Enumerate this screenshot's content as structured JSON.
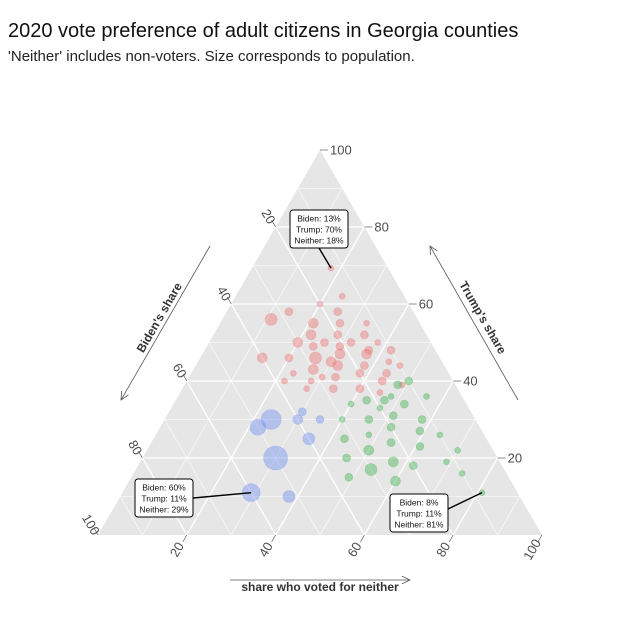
{
  "title": "2020 vote preference of adult citizens in Georgia counties",
  "subtitle": "'Neither' includes non-voters. Size corresponds to population.",
  "colors": {
    "panel": "#e6e6e6",
    "grid": "#ffffff",
    "biden": "#6d8ff0",
    "trump": "#ee6f6f",
    "neither": "#3cb04c"
  },
  "chart_data": {
    "type": "scatter",
    "subtype": "ternary",
    "axes": {
      "left": {
        "label": "Biden's share",
        "ticks": [
          20,
          40,
          60,
          80,
          100
        ]
      },
      "right": {
        "label": "Trump's share",
        "ticks": [
          20,
          40,
          60,
          80,
          100
        ]
      },
      "bottom": {
        "label": "share who voted for neither",
        "ticks": [
          20,
          40,
          60,
          80,
          100
        ]
      }
    },
    "grid": true,
    "legend": "none",
    "points": [
      {
        "b": 13,
        "t": 70,
        "n": 18,
        "c": "trump",
        "s": 3
      },
      {
        "b": 14,
        "t": 62,
        "n": 24,
        "c": "trump",
        "s": 3
      },
      {
        "b": 20,
        "t": 60,
        "n": 20,
        "c": "trump",
        "s": 3
      },
      {
        "b": 17,
        "t": 58,
        "n": 25,
        "c": "trump",
        "s": 4
      },
      {
        "b": 28,
        "t": 58,
        "n": 14,
        "c": "trump",
        "s": 4
      },
      {
        "b": 33,
        "t": 56,
        "n": 11,
        "c": "trump",
        "s": 6
      },
      {
        "b": 24,
        "t": 55,
        "n": 21,
        "c": "trump",
        "s": 5
      },
      {
        "b": 18,
        "t": 55,
        "n": 27,
        "c": "trump",
        "s": 4
      },
      {
        "b": 12,
        "t": 55,
        "n": 33,
        "c": "trump",
        "s": 3
      },
      {
        "b": 26,
        "t": 52,
        "n": 22,
        "c": "trump",
        "s": 5
      },
      {
        "b": 20,
        "t": 52,
        "n": 28,
        "c": "trump",
        "s": 4
      },
      {
        "b": 14,
        "t": 52,
        "n": 34,
        "c": "trump",
        "s": 4
      },
      {
        "b": 30,
        "t": 50,
        "n": 20,
        "c": "trump",
        "s": 5
      },
      {
        "b": 24,
        "t": 50,
        "n": 26,
        "c": "trump",
        "s": 4
      },
      {
        "b": 18,
        "t": 50,
        "n": 32,
        "c": "trump",
        "s": 4
      },
      {
        "b": 12,
        "t": 50,
        "n": 38,
        "c": "trump",
        "s": 3
      },
      {
        "b": 10,
        "t": 48,
        "n": 42,
        "c": "trump",
        "s": 4
      },
      {
        "b": 16,
        "t": 47,
        "n": 37,
        "c": "trump",
        "s": 5
      },
      {
        "b": 22,
        "t": 47,
        "n": 31,
        "c": "trump",
        "s": 5
      },
      {
        "b": 28,
        "t": 46,
        "n": 26,
        "c": "trump",
        "s": 6
      },
      {
        "b": 34,
        "t": 46,
        "n": 20,
        "c": "trump",
        "s": 4
      },
      {
        "b": 40,
        "t": 46,
        "n": 14,
        "c": "trump",
        "s": 5
      },
      {
        "b": 12,
        "t": 45,
        "n": 43,
        "c": "trump",
        "s": 3
      },
      {
        "b": 18,
        "t": 44,
        "n": 38,
        "c": "trump",
        "s": 4
      },
      {
        "b": 24,
        "t": 44,
        "n": 32,
        "c": "trump",
        "s": 5
      },
      {
        "b": 30,
        "t": 43,
        "n": 27,
        "c": "trump",
        "s": 5
      },
      {
        "b": 14,
        "t": 42,
        "n": 44,
        "c": "trump",
        "s": 4
      },
      {
        "b": 20,
        "t": 42,
        "n": 38,
        "c": "trump",
        "s": 4
      },
      {
        "b": 26,
        "t": 41,
        "n": 33,
        "c": "trump",
        "s": 4
      },
      {
        "b": 32,
        "t": 40,
        "n": 28,
        "c": "trump",
        "s": 3
      },
      {
        "b": 22,
        "t": 38,
        "n": 40,
        "c": "trump",
        "s": 4
      },
      {
        "b": 28,
        "t": 38,
        "n": 34,
        "c": "trump",
        "s": 4
      },
      {
        "b": 34,
        "t": 38,
        "n": 28,
        "c": "trump",
        "s": 3
      },
      {
        "b": 16,
        "t": 40,
        "n": 44,
        "c": "trump",
        "s": 4
      },
      {
        "b": 12,
        "t": 39,
        "n": 49,
        "c": "trump",
        "s": 3
      },
      {
        "b": 18,
        "t": 37,
        "n": 45,
        "c": "trump",
        "s": 3
      },
      {
        "b": 15,
        "t": 48,
        "n": 37,
        "c": "trump",
        "s": 4
      },
      {
        "b": 21,
        "t": 49,
        "n": 30,
        "c": "trump",
        "s": 4
      },
      {
        "b": 27,
        "t": 49,
        "n": 24,
        "c": "trump",
        "s": 4
      },
      {
        "b": 25,
        "t": 45,
        "n": 30,
        "c": "trump",
        "s": 5
      },
      {
        "b": 29,
        "t": 41,
        "n": 30,
        "c": "trump",
        "s": 3
      },
      {
        "b": 35,
        "t": 42,
        "n": 23,
        "c": "trump",
        "s": 3
      },
      {
        "b": 38,
        "t": 40,
        "n": 22,
        "c": "trump",
        "s": 3
      },
      {
        "b": 10,
        "t": 44,
        "n": 46,
        "c": "trump",
        "s": 3
      },
      {
        "b": 10,
        "t": 40,
        "n": 50,
        "c": "neither",
        "s": 4
      },
      {
        "b": 13,
        "t": 39,
        "n": 48,
        "c": "neither",
        "s": 4
      },
      {
        "b": 18,
        "t": 35,
        "n": 47,
        "c": "neither",
        "s": 4
      },
      {
        "b": 22,
        "t": 35,
        "n": 43,
        "c": "neither",
        "s": 4
      },
      {
        "b": 26,
        "t": 34,
        "n": 40,
        "c": "neither",
        "s": 3
      },
      {
        "b": 14,
        "t": 34,
        "n": 52,
        "c": "neither",
        "s": 4
      },
      {
        "b": 8,
        "t": 36,
        "n": 56,
        "c": "neither",
        "s": 3
      },
      {
        "b": 18,
        "t": 31,
        "n": 51,
        "c": "neither",
        "s": 4
      },
      {
        "b": 24,
        "t": 30,
        "n": 46,
        "c": "neither",
        "s": 4
      },
      {
        "b": 30,
        "t": 30,
        "n": 40,
        "c": "neither",
        "s": 3
      },
      {
        "b": 12,
        "t": 30,
        "n": 58,
        "c": "neither",
        "s": 4
      },
      {
        "b": 20,
        "t": 28,
        "n": 52,
        "c": "neither",
        "s": 4
      },
      {
        "b": 26,
        "t": 26,
        "n": 48,
        "c": "neither",
        "s": 3
      },
      {
        "b": 14,
        "t": 27,
        "n": 59,
        "c": "neither",
        "s": 4
      },
      {
        "b": 32,
        "t": 25,
        "n": 43,
        "c": "neither",
        "s": 4
      },
      {
        "b": 22,
        "t": 24,
        "n": 54,
        "c": "neither",
        "s": 4
      },
      {
        "b": 10,
        "t": 26,
        "n": 64,
        "c": "neither",
        "s": 3
      },
      {
        "b": 28,
        "t": 22,
        "n": 50,
        "c": "neither",
        "s": 5
      },
      {
        "b": 16,
        "t": 23,
        "n": 61,
        "c": "neither",
        "s": 4
      },
      {
        "b": 8,
        "t": 22,
        "n": 70,
        "c": "neither",
        "s": 3
      },
      {
        "b": 34,
        "t": 20,
        "n": 46,
        "c": "neither",
        "s": 4
      },
      {
        "b": 24,
        "t": 19,
        "n": 57,
        "c": "neither",
        "s": 5
      },
      {
        "b": 30,
        "t": 17,
        "n": 53,
        "c": "neither",
        "s": 6
      },
      {
        "b": 20,
        "t": 18,
        "n": 62,
        "c": "neither",
        "s": 4
      },
      {
        "b": 12,
        "t": 19,
        "n": 69,
        "c": "neither",
        "s": 3
      },
      {
        "b": 26,
        "t": 14,
        "n": 60,
        "c": "neither",
        "s": 5
      },
      {
        "b": 10,
        "t": 16,
        "n": 74,
        "c": "neither",
        "s": 3
      },
      {
        "b": 36,
        "t": 15,
        "n": 49,
        "c": "neither",
        "s": 4
      },
      {
        "b": 16,
        "t": 36,
        "n": 48,
        "c": "neither",
        "s": 3
      },
      {
        "b": 20,
        "t": 33,
        "n": 47,
        "c": "neither",
        "s": 3
      },
      {
        "b": 8,
        "t": 11,
        "n": 81,
        "c": "neither",
        "s": 3
      },
      {
        "b": 60,
        "t": 11,
        "n": 29,
        "c": "biden",
        "s": 9
      },
      {
        "b": 50,
        "t": 20,
        "n": 30,
        "c": "biden",
        "s": 12
      },
      {
        "b": 46,
        "t": 30,
        "n": 24,
        "c": "biden",
        "s": 10
      },
      {
        "b": 50,
        "t": 28,
        "n": 22,
        "c": "biden",
        "s": 8
      },
      {
        "b": 40,
        "t": 30,
        "n": 30,
        "c": "biden",
        "s": 5
      },
      {
        "b": 40,
        "t": 25,
        "n": 35,
        "c": "biden",
        "s": 6
      },
      {
        "b": 38,
        "t": 32,
        "n": 30,
        "c": "biden",
        "s": 4
      },
      {
        "b": 52,
        "t": 10,
        "n": 38,
        "c": "biden",
        "s": 6
      },
      {
        "b": 35,
        "t": 30,
        "n": 35,
        "c": "biden",
        "s": 4
      }
    ],
    "annotations": [
      {
        "lines": [
          "Biden: 13%",
          "Trump: 70%",
          "Neither: 18%"
        ],
        "point": {
          "b": 13,
          "t": 70,
          "n": 18
        }
      },
      {
        "lines": [
          "Biden: 60%",
          "Trump: 11%",
          "Neither: 29%"
        ],
        "point": {
          "b": 60,
          "t": 11,
          "n": 29
        }
      },
      {
        "lines": [
          "Biden: 8%",
          "Trump: 11%",
          "Neither: 81%"
        ],
        "point": {
          "b": 8,
          "t": 11,
          "n": 81
        }
      }
    ]
  }
}
